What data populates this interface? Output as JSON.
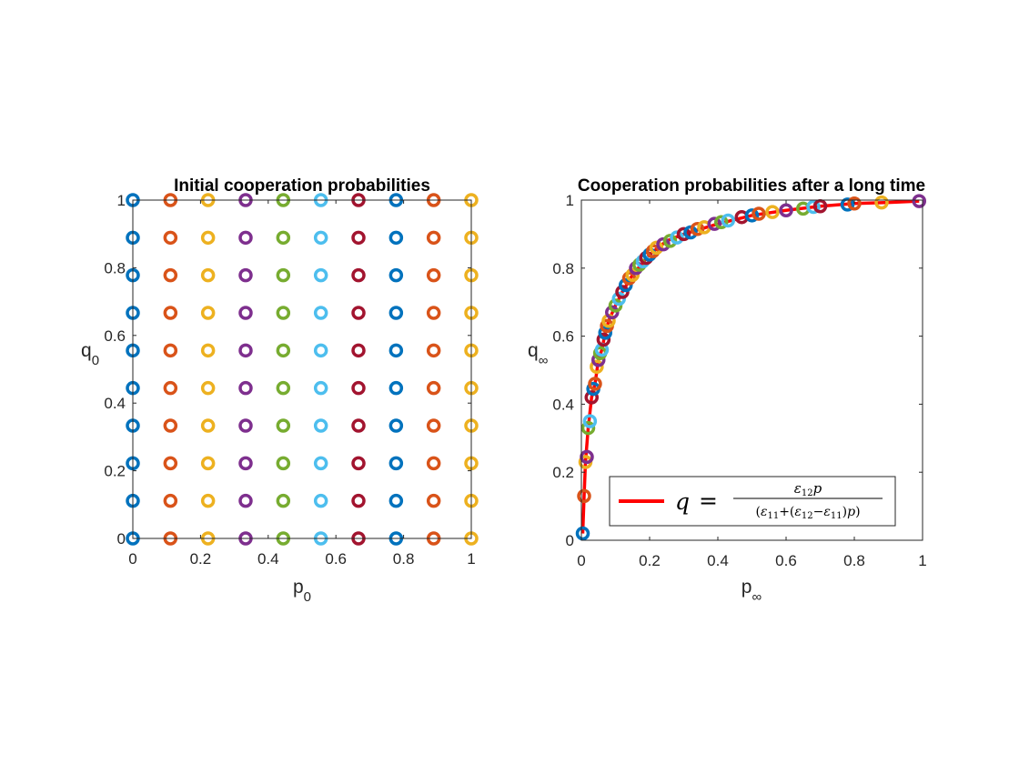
{
  "colors": [
    "#0072BD",
    "#D95319",
    "#EDB120",
    "#7E2F8E",
    "#77AC30",
    "#4DBEEE",
    "#A2142F"
  ],
  "legend_line_color": "#FF0000",
  "chart_data": [
    {
      "type": "scatter",
      "title": "Initial cooperation probabilities",
      "xlabel": {
        "main": "p",
        "sub": "0"
      },
      "ylabel": {
        "main": "q",
        "sub": "0"
      },
      "xlim": [
        0,
        1
      ],
      "ylim": [
        0,
        1
      ],
      "xticks": [
        "0",
        "0.2",
        "0.4",
        "0.6",
        "0.8",
        "1"
      ],
      "yticks": [
        "0",
        "0.2",
        "0.4",
        "0.6",
        "0.8",
        "1"
      ],
      "grid": false,
      "marker": "circle",
      "grid_points": [
        0,
        0.1111,
        0.2222,
        0.3333,
        0.4444,
        0.5556,
        0.6667,
        0.7778,
        0.8889,
        1.0
      ],
      "color_rule": "series color cycles by column index across 7 colors"
    },
    {
      "type": "scatter",
      "title": "Cooperation probabilities after a long time",
      "xlabel": {
        "main": "p",
        "sub": "∞"
      },
      "ylabel": {
        "main": "q",
        "sub": "∞"
      },
      "xlim": [
        0,
        1
      ],
      "ylim": [
        0,
        1
      ],
      "xticks": [
        "0",
        "0.2",
        "0.4",
        "0.6",
        "0.8",
        "1"
      ],
      "yticks": [
        "0",
        "0.2",
        "0.4",
        "0.6",
        "0.8",
        "1"
      ],
      "grid": false,
      "marker": "circle",
      "points": [
        [
          0.004,
          0.02
        ],
        [
          0.008,
          0.13
        ],
        [
          0.012,
          0.23
        ],
        [
          0.016,
          0.245
        ],
        [
          0.02,
          0.33
        ],
        [
          0.025,
          0.35
        ],
        [
          0.03,
          0.42
        ],
        [
          0.035,
          0.445
        ],
        [
          0.04,
          0.46
        ],
        [
          0.045,
          0.51
        ],
        [
          0.05,
          0.53
        ],
        [
          0.055,
          0.55
        ],
        [
          0.06,
          0.56
        ],
        [
          0.065,
          0.59
        ],
        [
          0.07,
          0.61
        ],
        [
          0.075,
          0.63
        ],
        [
          0.08,
          0.645
        ],
        [
          0.09,
          0.67
        ],
        [
          0.1,
          0.69
        ],
        [
          0.11,
          0.71
        ],
        [
          0.12,
          0.73
        ],
        [
          0.13,
          0.75
        ],
        [
          0.14,
          0.77
        ],
        [
          0.15,
          0.78
        ],
        [
          0.16,
          0.8
        ],
        [
          0.17,
          0.81
        ],
        [
          0.18,
          0.82
        ],
        [
          0.19,
          0.83
        ],
        [
          0.2,
          0.84
        ],
        [
          0.21,
          0.85
        ],
        [
          0.22,
          0.86
        ],
        [
          0.24,
          0.87
        ],
        [
          0.26,
          0.88
        ],
        [
          0.28,
          0.89
        ],
        [
          0.3,
          0.9
        ],
        [
          0.32,
          0.905
        ],
        [
          0.34,
          0.915
        ],
        [
          0.36,
          0.92
        ],
        [
          0.39,
          0.93
        ],
        [
          0.41,
          0.935
        ],
        [
          0.43,
          0.94
        ],
        [
          0.47,
          0.95
        ],
        [
          0.5,
          0.955
        ],
        [
          0.52,
          0.96
        ],
        [
          0.56,
          0.965
        ],
        [
          0.6,
          0.97
        ],
        [
          0.65,
          0.975
        ],
        [
          0.68,
          0.98
        ],
        [
          0.7,
          0.982
        ],
        [
          0.78,
          0.987
        ],
        [
          0.8,
          0.99
        ],
        [
          0.88,
          0.993
        ],
        [
          0.99,
          0.997
        ]
      ],
      "curve": {
        "type": "line",
        "name": "q = ε12 p / (ε11 + (ε12 − ε11) p)",
        "x": [
          0.004,
          0.008,
          0.012,
          0.02,
          0.03,
          0.04,
          0.05,
          0.06,
          0.07,
          0.08,
          0.1,
          0.12,
          0.15,
          0.2,
          0.25,
          0.3,
          0.35,
          0.4,
          0.5,
          0.6,
          0.7,
          0.8,
          0.9,
          0.99
        ],
        "y": [
          0.02,
          0.13,
          0.23,
          0.33,
          0.42,
          0.46,
          0.53,
          0.56,
          0.61,
          0.645,
          0.69,
          0.73,
          0.78,
          0.84,
          0.88,
          0.9,
          0.915,
          0.93,
          0.955,
          0.97,
          0.982,
          0.99,
          0.993,
          0.997
        ]
      },
      "legend": {
        "location": "bottom-right",
        "lhs": "q",
        "equals": "=",
        "numerator": {
          "epsilon": "ε",
          "sub": "12",
          "var": "p"
        },
        "denominator": {
          "open": "(",
          "eps1": "ε",
          "sub1": "11",
          "plus": "+(",
          "eps2": "ε",
          "sub2": "12",
          "minus": "−",
          "eps3": "ε",
          "sub3": "11",
          "close": ")",
          "var": "p",
          "end": ")"
        }
      }
    }
  ]
}
